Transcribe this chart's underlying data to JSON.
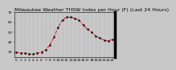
{
  "title": "Milwaukee Weather THSW Index per Hour (F) (Last 24 Hours)",
  "x": [
    0,
    1,
    2,
    3,
    4,
    5,
    6,
    7,
    8,
    9,
    10,
    11,
    12,
    13,
    14,
    15,
    16,
    17,
    18,
    19,
    20,
    21,
    22,
    23
  ],
  "y": [
    30,
    29,
    29,
    28,
    28,
    29,
    30,
    32,
    37,
    45,
    55,
    62,
    65,
    65,
    64,
    62,
    57,
    53,
    50,
    46,
    44,
    42,
    41,
    43
  ],
  "line_color": "#dd0000",
  "marker_color": "#000000",
  "grid_color": "#aaaaaa",
  "bg_color": "#c8c8c8",
  "plot_bg_color": "#c8c8c8",
  "border_color": "#000000",
  "ylim": [
    25,
    70
  ],
  "xlim": [
    -0.5,
    23.5
  ],
  "yticks": [
    30,
    40,
    50,
    60,
    70
  ],
  "title_fontsize": 4.5,
  "tick_fontsize": 3.2
}
